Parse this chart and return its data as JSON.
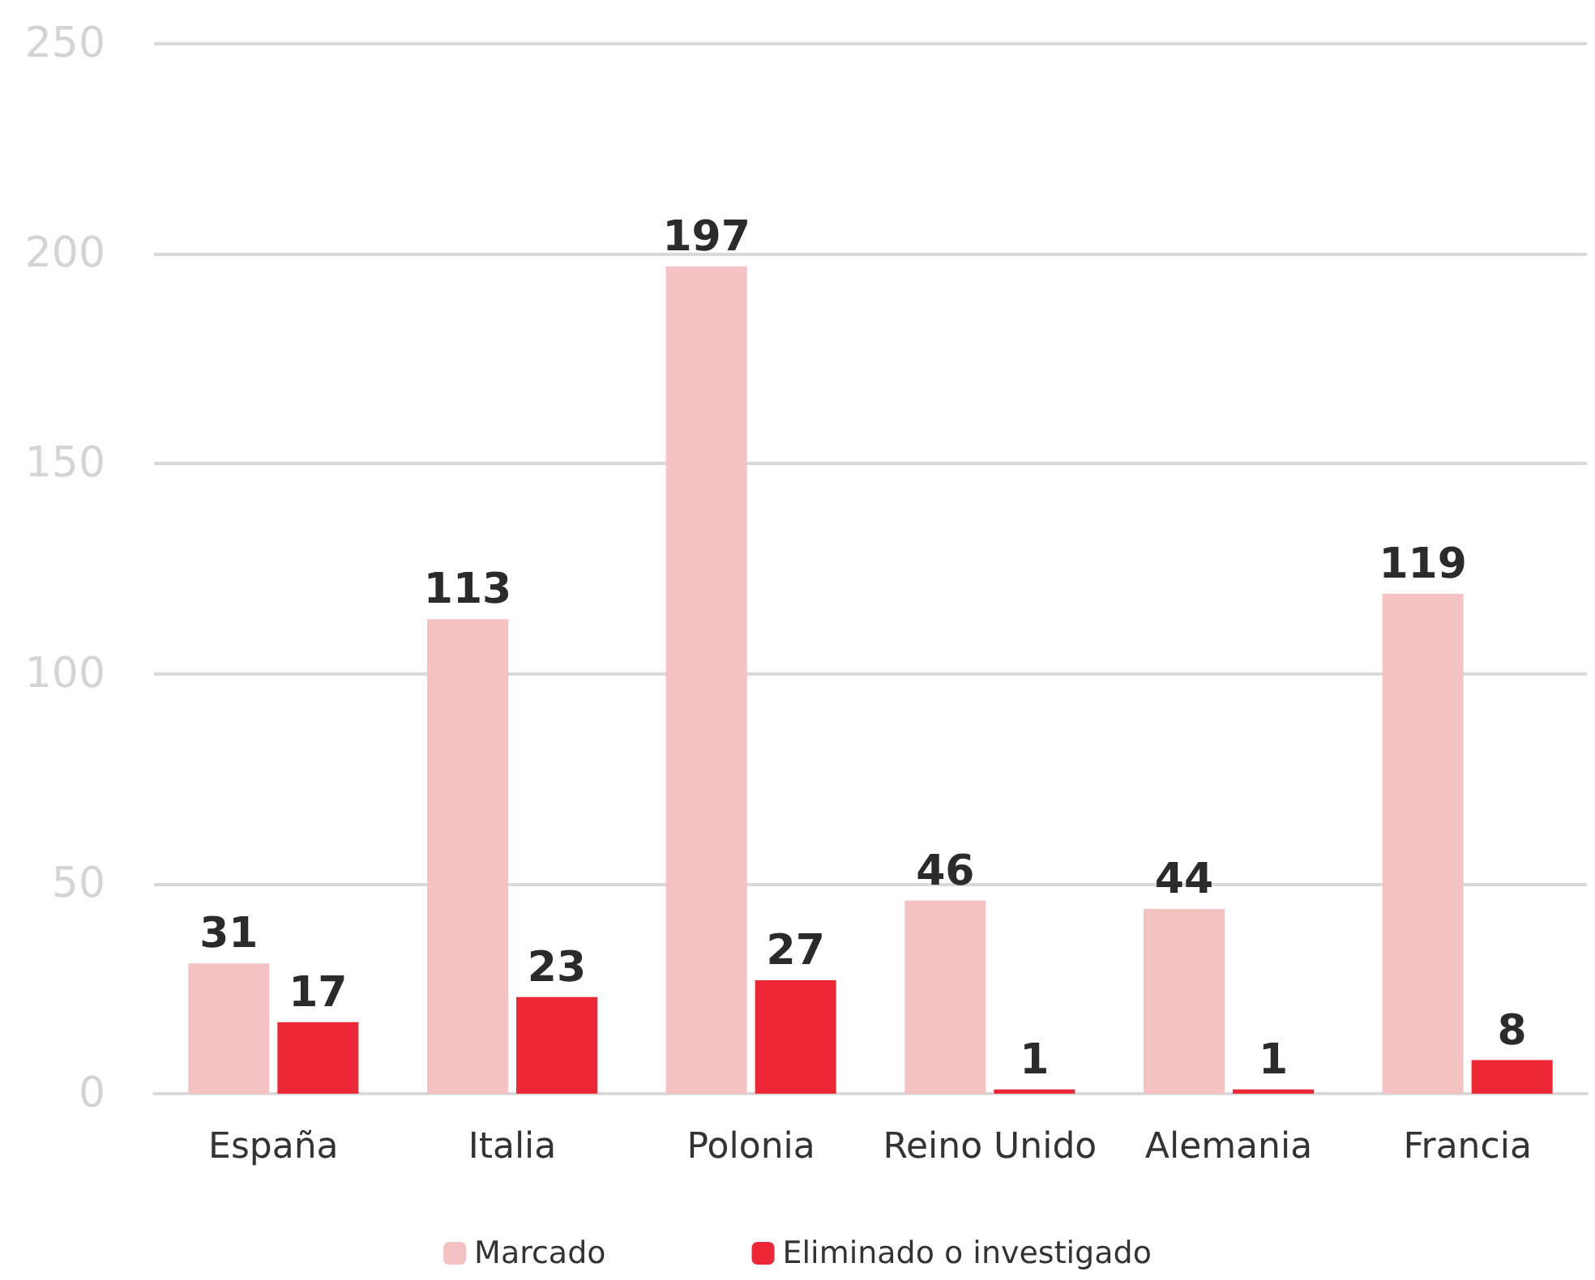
{
  "chart_data": {
    "type": "bar",
    "categories": [
      "España",
      "Italia",
      "Polonia",
      "Reino Unido",
      "Alemania",
      "Francia"
    ],
    "series": [
      {
        "name": "Marcado",
        "color": "#f5c2c4",
        "values": [
          31,
          113,
          197,
          46,
          44,
          119
        ]
      },
      {
        "name": "Eliminado o investigado",
        "color": "#ee2737",
        "values": [
          17,
          23,
          27,
          1,
          1,
          8
        ]
      }
    ],
    "ylim": [
      0,
      250
    ],
    "yticks": [
      0,
      50,
      100,
      150,
      200,
      250
    ],
    "grid": "y",
    "legend": "bottom",
    "data_labels": true
  }
}
